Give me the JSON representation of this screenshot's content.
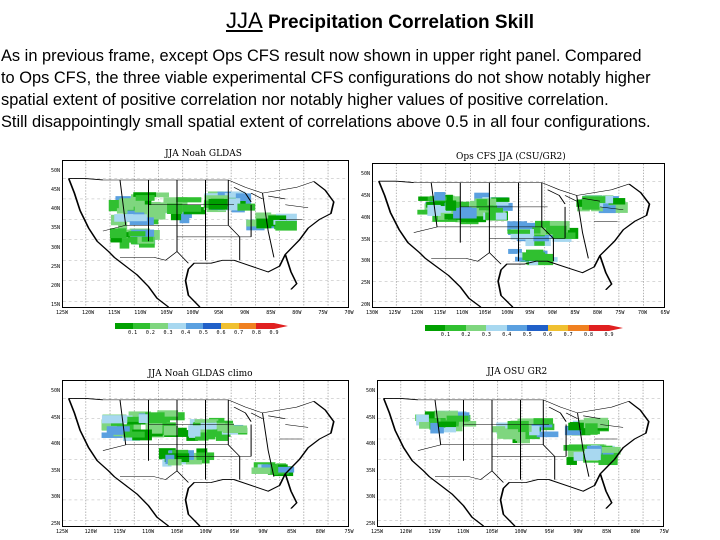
{
  "page": {
    "title_prefix": "JJA",
    "title_rest": " Precipitation Correlation Skill",
    "description_lines": [
      "As in previous frame, except Ops CFS result now shown in upper right panel.  Compared",
      "to Ops CFS, the three viable experimental CFS configurations do not show notably higher",
      "spatial extent of positive correlation nor notably higher values of positive correlation.",
      "Still disappointingly small spatial extent of correlations above 0.5 in all four configurations."
    ]
  },
  "colorbar": {
    "levels": [
      "0.1",
      "0.2",
      "0.3",
      "0.4",
      "0.5",
      "0.6",
      "0.7",
      "0.8",
      "0.9"
    ],
    "colors": [
      "#00a000",
      "#30c030",
      "#7fd67f",
      "#a8d8f0",
      "#5aa0e0",
      "#2060c8",
      "#f0c030",
      "#f08020",
      "#e02020"
    ]
  },
  "panels": [
    {
      "id": "noah-gldas",
      "title": "JJA Noah GLDAS",
      "lat_labels": [
        "50N",
        "45N",
        "40N",
        "35N",
        "30N",
        "25N",
        "20N",
        "15N"
      ],
      "lon_labels": [
        "125W",
        "120W",
        "115W",
        "110W",
        "105W",
        "100W",
        "95W",
        "90W",
        "85W",
        "80W",
        "75W",
        "70W"
      ],
      "has_colorbar": true
    },
    {
      "id": "ops-cfs",
      "title": "Ops CFS JJA (CSU/GR2)",
      "lat_labels": [
        "50N",
        "45N",
        "40N",
        "35N",
        "30N",
        "25N",
        "20N"
      ],
      "lon_labels": [
        "130W",
        "125W",
        "120W",
        "115W",
        "110W",
        "105W",
        "100W",
        "95W",
        "90W",
        "85W",
        "80W",
        "75W",
        "70W",
        "65W"
      ],
      "has_colorbar": true
    },
    {
      "id": "noah-gldas-climo",
      "title": "JJA Noah GLDAS climo",
      "lat_labels": [
        "50N",
        "45N",
        "40N",
        "35N",
        "30N",
        "25N"
      ],
      "lon_labels": [
        "125W",
        "120W",
        "115W",
        "110W",
        "105W",
        "100W",
        "95W",
        "90W",
        "85W",
        "80W",
        "75W"
      ],
      "has_colorbar": false
    },
    {
      "id": "osu-gr2",
      "title": "JJA OSU GR2",
      "lat_labels": [
        "50N",
        "45N",
        "40N",
        "35N",
        "30N",
        "25N"
      ],
      "lon_labels": [
        "125W",
        "120W",
        "115W",
        "110W",
        "105W",
        "100W",
        "95W",
        "90W",
        "85W",
        "80W",
        "75W"
      ],
      "has_colorbar": false
    }
  ]
}
